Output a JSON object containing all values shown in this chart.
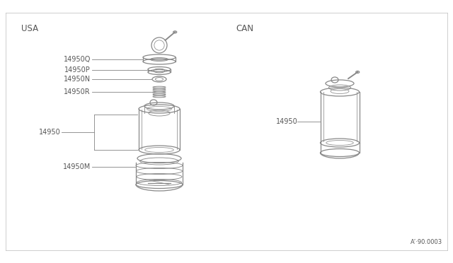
{
  "bg_color": "#ffffff",
  "line_color": "#888888",
  "text_color": "#555555",
  "title_usa": "USA",
  "title_can": "CAN",
  "diagram_code": "A’·90.0003",
  "figsize": [
    6.4,
    3.72
  ],
  "dpi": 100
}
